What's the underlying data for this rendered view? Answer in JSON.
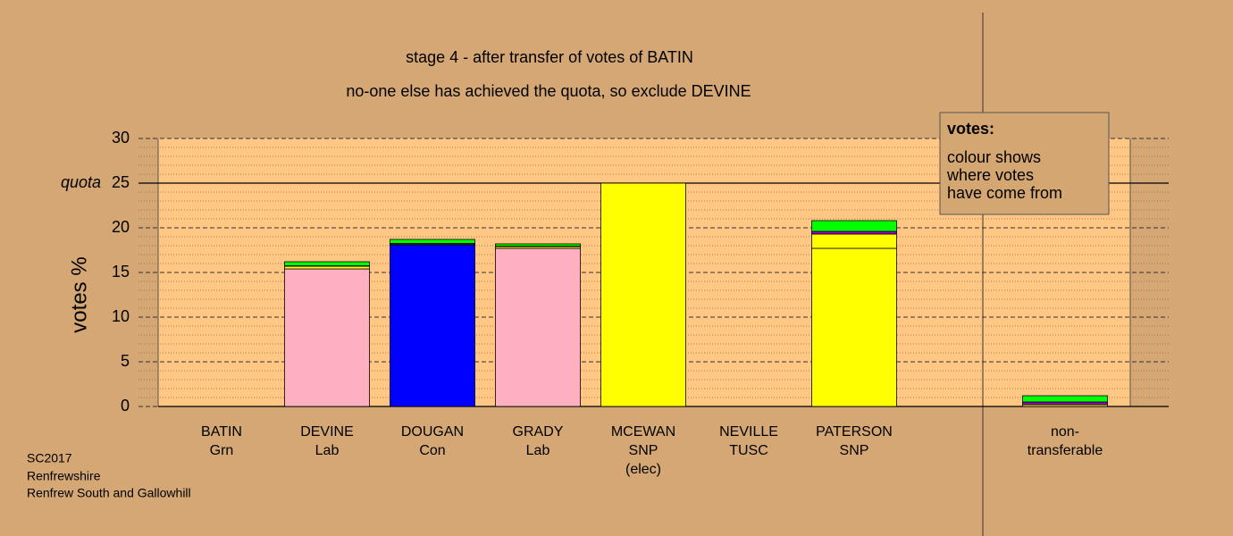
{
  "chart_data": {
    "type": "stacked_bar",
    "title": [
      "stage 4 - after transfer of votes of BATIN",
      "no-one else has achieved the quota, so exclude DEVINE"
    ],
    "y_label": "votes %",
    "categories": [
      [
        "BATIN",
        "Grn"
      ],
      [
        "DEVINE",
        "Lab"
      ],
      [
        "DOUGAN",
        "Con"
      ],
      [
        "GRADY",
        "Lab"
      ],
      [
        "MCEWAN",
        "SNP",
        "(elec)"
      ],
      [
        "NEVILLE",
        "TUSC"
      ],
      [
        "PATERSON",
        "SNP"
      ],
      null,
      [
        "non-",
        "transferable"
      ]
    ],
    "series": [
      {
        "colors": [
          "#00ff00",
          "#ffb0c0",
          "#0000ff",
          "#ffb0c0",
          "#ffff00",
          "#9900cc",
          "#ffff00",
          null,
          "#9900cc"
        ],
        "values": [
          0,
          15.4,
          18.1,
          17.7,
          25,
          0,
          17.7,
          null,
          0
        ]
      },
      {
        "color": "#ffff00",
        "values": [
          0,
          0.3,
          0.1,
          0.2,
          0,
          0,
          1.6,
          null,
          0.2
        ]
      },
      {
        "color": "#9900cc",
        "values": [
          0,
          0.05,
          0.05,
          0.05,
          0,
          0,
          0.3,
          null,
          0.3
        ]
      },
      {
        "color": "#00ff00",
        "values": [
          0,
          0.45,
          0.45,
          0.25,
          0,
          0,
          1.2,
          null,
          0.7
        ]
      }
    ],
    "ylim": [
      0,
      30
    ],
    "yticks": [
      0,
      5,
      10,
      15,
      20,
      25,
      30
    ],
    "minor_yticks": [
      1,
      2,
      3,
      4,
      6,
      7,
      8,
      9,
      11,
      12,
      13,
      14,
      16,
      17,
      18,
      19,
      21,
      22,
      23,
      24,
      26,
      27,
      28,
      29
    ],
    "quota": {
      "value": 25,
      "label": "quota"
    },
    "legend": {
      "title": "votes:",
      "lines": [
        "colour shows",
        "where votes",
        "have come from"
      ]
    },
    "footer": [
      "SC2017",
      "Renfrewshire",
      "Renfrew South and Gallowhill"
    ]
  }
}
